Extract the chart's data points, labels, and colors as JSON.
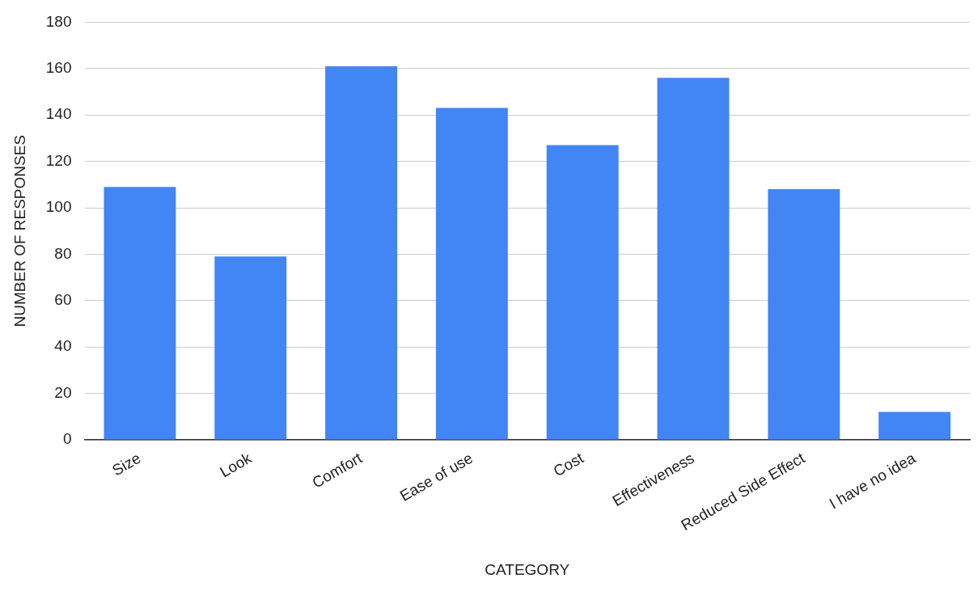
{
  "chart_data": {
    "type": "bar",
    "xlabel": "CATEGORY",
    "ylabel": "NUMBER OF RESPONSES",
    "categories": [
      "Size",
      "Look",
      "Comfort",
      "Ease of use",
      "Cost",
      "Effectiveness",
      "Reduced Side Effect",
      "I have no idea"
    ],
    "values": [
      109,
      79,
      161,
      143,
      127,
      156,
      108,
      12
    ],
    "color": "#4285f4",
    "ylim": [
      0,
      180
    ],
    "yticks": [
      0,
      20,
      40,
      60,
      80,
      100,
      120,
      140,
      160,
      180
    ],
    "grid": "y",
    "legend": false
  }
}
